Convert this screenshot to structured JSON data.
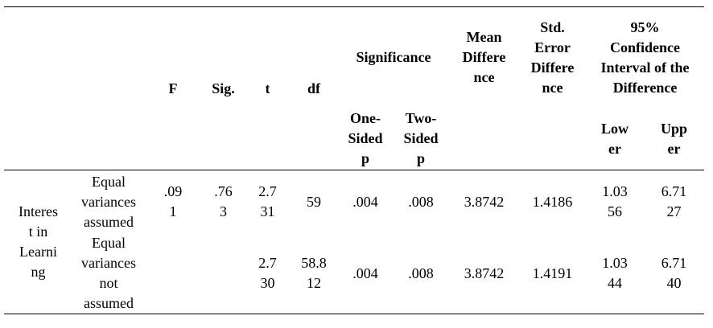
{
  "headers": {
    "f": "F",
    "sig": "Sig.",
    "t": "t",
    "df": "df",
    "significance": "Significance",
    "one_sided": "One-Sided p",
    "two_sided": "Two-Sided p",
    "mean_diff": "Mean Difference",
    "std_err": "Std. Error Difference",
    "ci": "95% Confidence Interval of the Difference",
    "lower": "Lower",
    "upper": "Upper"
  },
  "variable": "Interest in Learning",
  "rows": [
    {
      "label": "Equal variances assumed",
      "f": ".091",
      "sig": ".763",
      "t": "2.731",
      "df": "59",
      "one": ".004",
      "two": ".008",
      "mean": "3.8742",
      "se": "1.4186",
      "lower": "1.0356",
      "upper": "6.7127"
    },
    {
      "label": "Equal variances not assumed",
      "f": "",
      "sig": "",
      "t": "2.730",
      "df": "58.812",
      "one": ".004",
      "two": ".008",
      "mean": "3.8742",
      "se": "1.4191",
      "lower": "1.0344",
      "upper": "6.7140"
    }
  ]
}
